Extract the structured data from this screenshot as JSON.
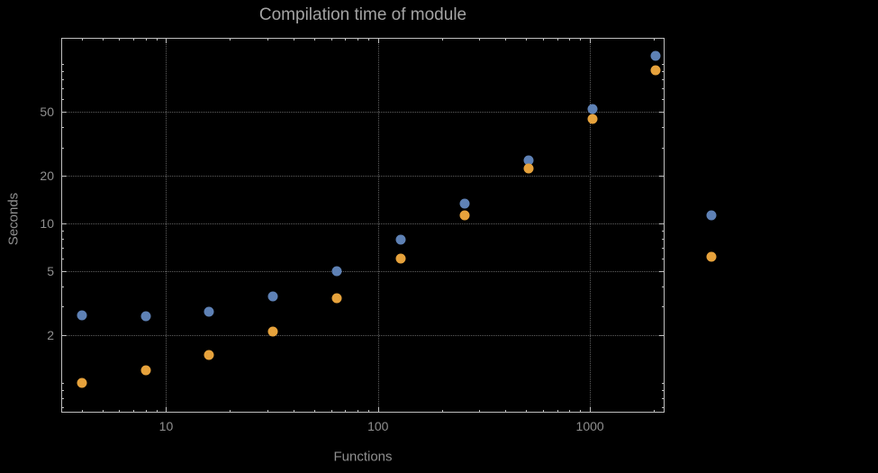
{
  "chart_data": {
    "type": "scatter",
    "title": "Compilation time of module",
    "xlabel": "Functions",
    "ylabel": "Seconds",
    "x_scale": "log",
    "y_scale": "log",
    "xlim": [
      3.2,
      2250
    ],
    "ylim": [
      0.65,
      146
    ],
    "x_ticks": [
      10,
      100,
      1000
    ],
    "x_tick_labels": [
      "10",
      "100",
      "1000"
    ],
    "y_ticks": [
      2,
      5,
      10,
      20,
      50
    ],
    "y_tick_labels": [
      "2",
      "5",
      "10",
      "20",
      "50"
    ],
    "grid": true,
    "legend_position": "right-outside",
    "x": [
      4,
      8,
      16,
      32,
      64,
      128,
      256,
      512,
      1024,
      2048
    ],
    "series": [
      {
        "name": "",
        "color": "#5e81b5",
        "values": [
          2.65,
          2.6,
          2.8,
          3.5,
          5.0,
          7.9,
          13.4,
          25,
          52,
          112
        ]
      },
      {
        "name": "",
        "color": "#e6a23c",
        "values": [
          1.0,
          1.2,
          1.5,
          2.1,
          3.4,
          6.0,
          11.2,
          22,
          45,
          91
        ]
      }
    ],
    "legend_markers": [
      {
        "color": "#5e81b5",
        "y_value": 11.3,
        "label": ""
      },
      {
        "color": "#e6a23c",
        "y_value": 6.2,
        "label": ""
      }
    ],
    "colors": {
      "background": "#000000",
      "frame": "#bfbfbf",
      "grid": "#5f5f5f",
      "text": "#8f8f8f",
      "title_text": "#a3a3a3"
    }
  }
}
